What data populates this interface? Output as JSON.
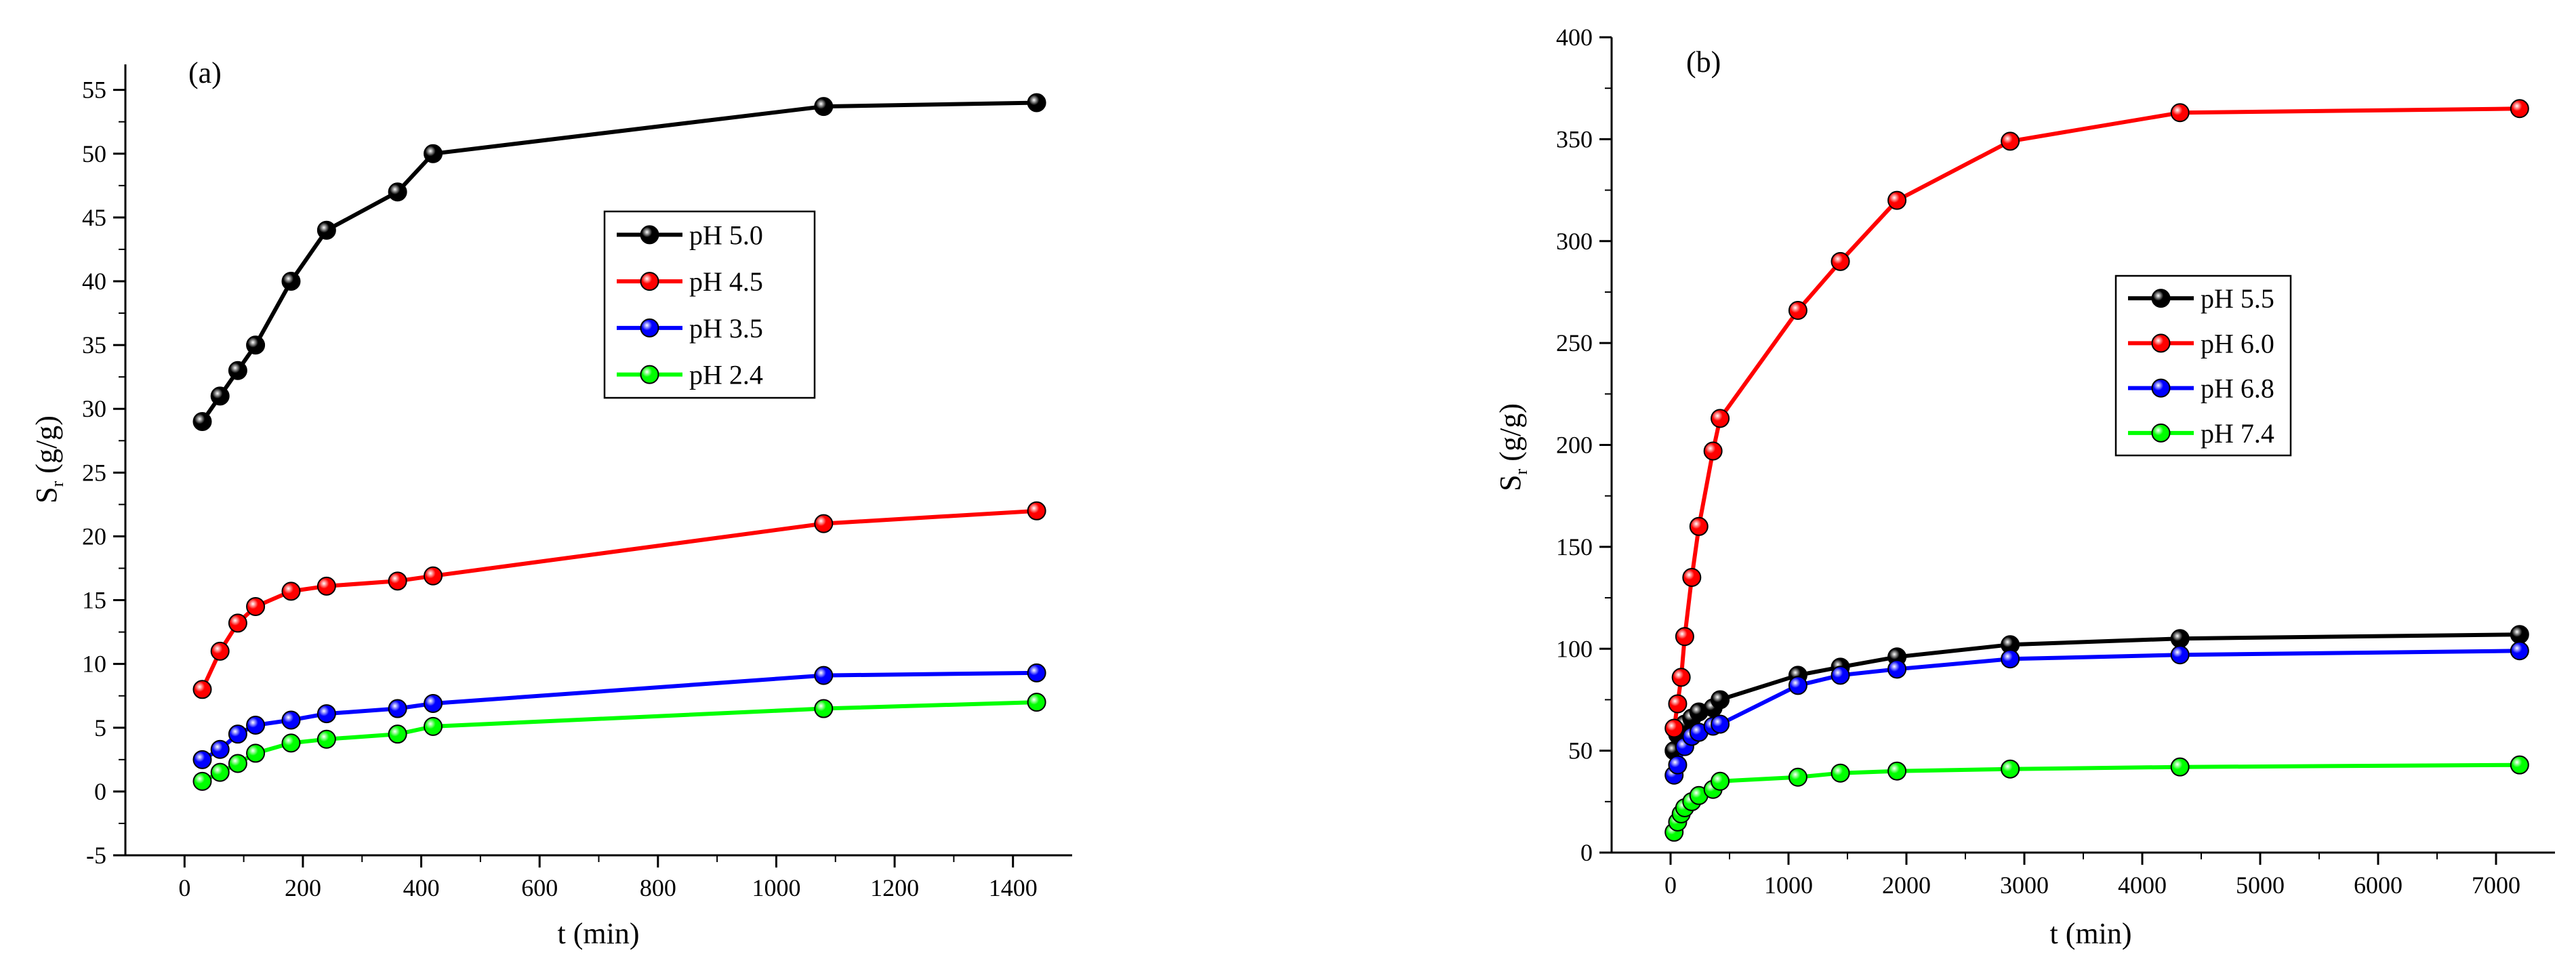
{
  "chart_data": [
    {
      "type": "line",
      "panel": "(a)",
      "xlabel": "t (min)",
      "ylabel_main": "S",
      "ylabel_sub": "r",
      "ylabel_rest": " (g/g)",
      "xlim": [
        -100,
        1500
      ],
      "ylim": [
        -5,
        57
      ],
      "xticks": [
        0,
        200,
        400,
        600,
        800,
        1000,
        1200,
        1400
      ],
      "yticks": [
        -5,
        0,
        5,
        10,
        15,
        20,
        25,
        30,
        35,
        40,
        45,
        50,
        55
      ],
      "legend_position": "center",
      "series": [
        {
          "name": "pH 5.0",
          "color": "#000000",
          "x": [
            30,
            60,
            90,
            120,
            180,
            240,
            360,
            420,
            1080,
            1440
          ],
          "y": [
            29,
            31,
            33,
            35,
            40,
            44,
            47,
            50,
            53.7,
            54
          ]
        },
        {
          "name": "pH 4.5",
          "color": "#ff0000",
          "x": [
            30,
            60,
            90,
            120,
            180,
            240,
            360,
            420,
            1080,
            1440
          ],
          "y": [
            8,
            11,
            13.2,
            14.5,
            15.7,
            16.1,
            16.5,
            16.9,
            21,
            22
          ]
        },
        {
          "name": "pH 3.5",
          "color": "#0000ff",
          "x": [
            30,
            60,
            90,
            120,
            180,
            240,
            360,
            420,
            1080,
            1440
          ],
          "y": [
            2.5,
            3.3,
            4.5,
            5.2,
            5.6,
            6.1,
            6.5,
            6.9,
            9.1,
            9.3
          ]
        },
        {
          "name": "pH 2.4",
          "color": "#00ff00",
          "x": [
            30,
            60,
            90,
            120,
            180,
            240,
            360,
            420,
            1080,
            1440
          ],
          "y": [
            0.8,
            1.5,
            2.2,
            3,
            3.8,
            4.1,
            4.5,
            5.1,
            6.5,
            7
          ]
        }
      ]
    },
    {
      "type": "line",
      "panel": "(b)",
      "xlabel": "t (min)",
      "ylabel_main": "S",
      "ylabel_sub": "r",
      "ylabel_rest": " (g/g)",
      "xlim": [
        -500,
        7500
      ],
      "ylim": [
        0,
        400
      ],
      "xticks": [
        0,
        1000,
        2000,
        3000,
        4000,
        5000,
        6000,
        7000
      ],
      "yticks": [
        0,
        50,
        100,
        150,
        200,
        250,
        300,
        350,
        400
      ],
      "legend_position": "center-right",
      "series": [
        {
          "name": "pH 5.5",
          "color": "#000000",
          "x": [
            30,
            60,
            120,
            180,
            240,
            360,
            420,
            1080,
            1440,
            1920,
            2880,
            4320,
            7200
          ],
          "y": [
            50,
            58,
            63,
            66,
            69,
            71,
            75,
            87,
            91,
            96,
            102,
            105,
            107
          ]
        },
        {
          "name": "pH 6.0",
          "color": "#ff0000",
          "x": [
            30,
            60,
            90,
            120,
            180,
            240,
            360,
            420,
            1080,
            1440,
            1920,
            2880,
            4320,
            7200
          ],
          "y": [
            61,
            73,
            86,
            106,
            135,
            160,
            197,
            213,
            266,
            290,
            320,
            349,
            363,
            365
          ]
        },
        {
          "name": "pH 6.8",
          "color": "#0000ff",
          "x": [
            30,
            60,
            120,
            180,
            240,
            360,
            420,
            1080,
            1440,
            1920,
            2880,
            4320,
            7200
          ],
          "y": [
            38,
            43,
            52,
            57,
            59,
            62,
            63,
            82,
            87,
            90,
            95,
            97,
            99
          ]
        },
        {
          "name": "pH 7.4",
          "color": "#00ff00",
          "x": [
            30,
            60,
            90,
            120,
            180,
            240,
            360,
            420,
            1080,
            1440,
            1920,
            2880,
            4320,
            7200
          ],
          "y": [
            10,
            15,
            19,
            22,
            25,
            28,
            31,
            35,
            37,
            39,
            40,
            41,
            42,
            43
          ]
        }
      ]
    }
  ]
}
